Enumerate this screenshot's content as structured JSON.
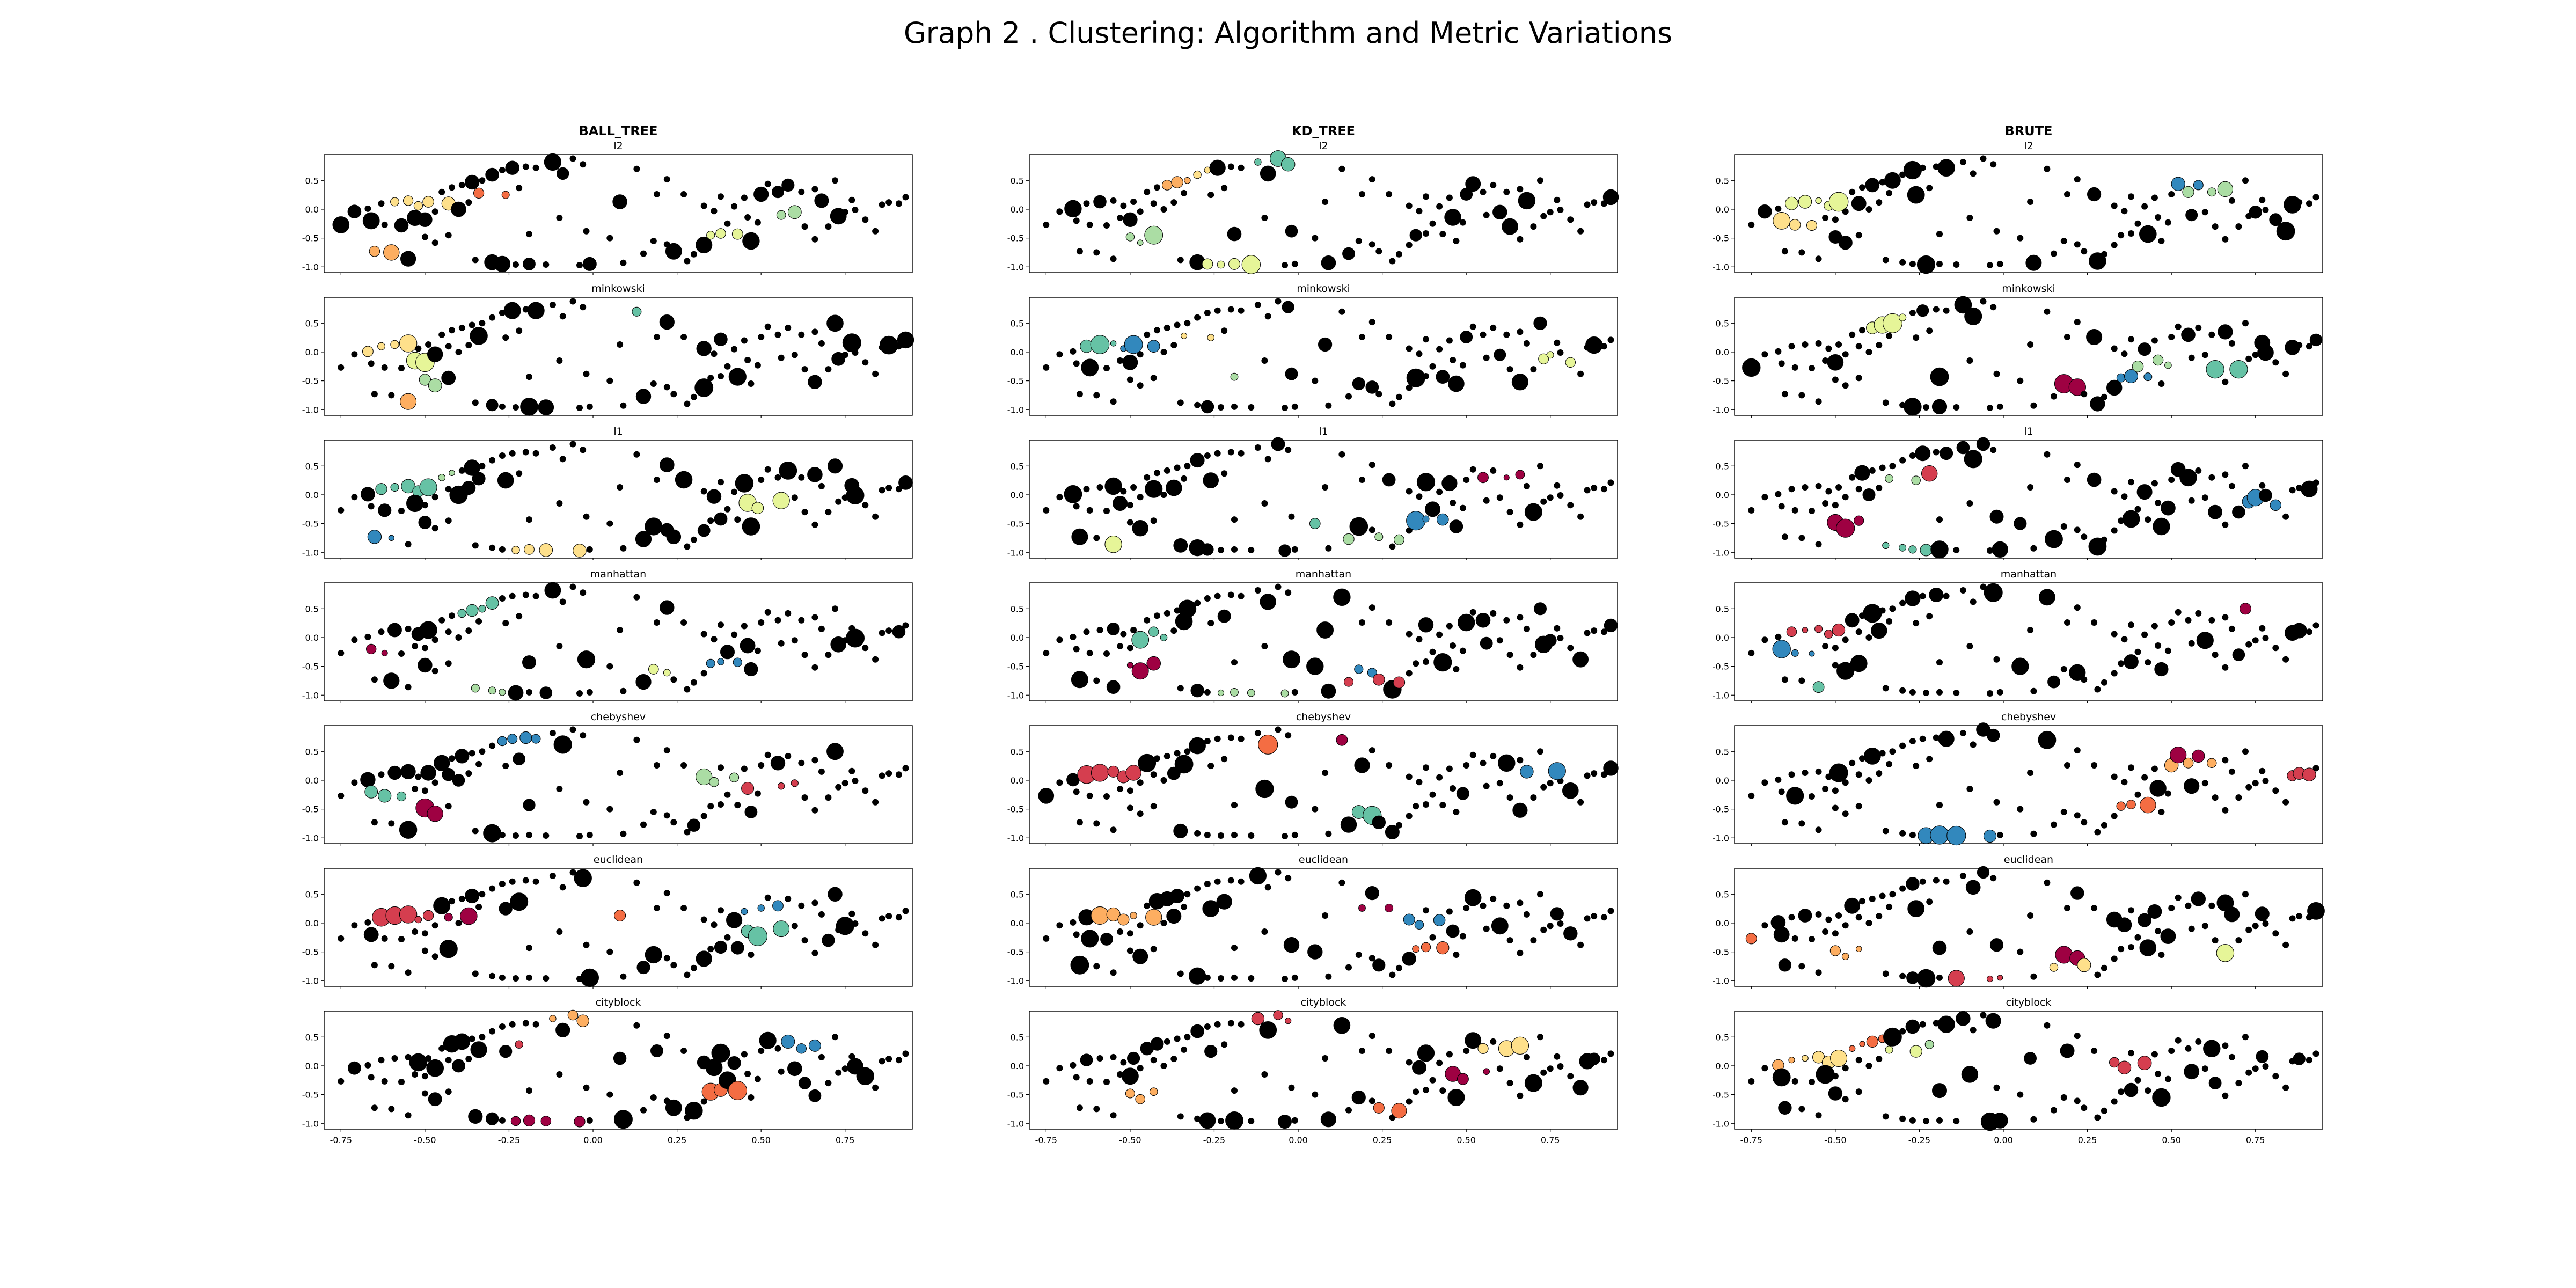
{
  "figure": {
    "title": "Graph 2 . Clustering: Algorithm and Metric Variations"
  },
  "chart_data": {
    "type": "scatter",
    "columns": [
      "BALL_TREE",
      "KD_TREE",
      "BRUTE"
    ],
    "rows": [
      "l2",
      "minkowski",
      "l1",
      "manhattan",
      "chebyshev",
      "euclidean",
      "cityblock"
    ],
    "xlim": [
      -0.8,
      0.95
    ],
    "ylim": [
      -1.1,
      0.95
    ],
    "x_ticks": [
      "-0.75",
      "-0.50",
      "-0.25",
      "0.00",
      "0.25",
      "0.50",
      "0.75"
    ],
    "y_ticks": [
      "0.5",
      "0.0",
      "-0.5",
      "-1.0"
    ],
    "grid": false,
    "legend": "none",
    "noise_color": "#000000",
    "cluster_colors": [
      "#9e0142",
      "#d53e4f",
      "#f46d43",
      "#fdae61",
      "#fee08b",
      "#e6f598",
      "#abdda4",
      "#66c2a5",
      "#3288bd"
    ],
    "points": [
      [
        -0.75,
        -0.27
      ],
      [
        -0.71,
        -0.04
      ],
      [
        -0.67,
        0.01
      ],
      [
        -0.63,
        0.1
      ],
      [
        -0.59,
        0.13
      ],
      [
        -0.55,
        0.15
      ],
      [
        -0.52,
        0.06
      ],
      [
        -0.49,
        0.13
      ],
      [
        -0.66,
        -0.2
      ],
      [
        -0.62,
        -0.27
      ],
      [
        -0.57,
        -0.28
      ],
      [
        -0.53,
        -0.15
      ],
      [
        -0.5,
        -0.18
      ],
      [
        -0.47,
        -0.04
      ],
      [
        -0.45,
        0.3
      ],
      [
        -0.42,
        0.38
      ],
      [
        -0.39,
        0.42
      ],
      [
        -0.36,
        0.47
      ],
      [
        -0.33,
        0.5
      ],
      [
        -0.3,
        0.6
      ],
      [
        -0.27,
        0.68
      ],
      [
        -0.24,
        0.72
      ],
      [
        -0.2,
        0.74
      ],
      [
        -0.17,
        0.72
      ],
      [
        -0.43,
        0.1
      ],
      [
        -0.4,
        0.0
      ],
      [
        -0.37,
        0.12
      ],
      [
        -0.34,
        0.28
      ],
      [
        -0.26,
        0.25
      ],
      [
        -0.22,
        0.37
      ],
      [
        -0.12,
        0.82
      ],
      [
        -0.09,
        0.62
      ],
      [
        -0.06,
        0.88
      ],
      [
        -0.03,
        0.78
      ],
      [
        -0.65,
        -0.73
      ],
      [
        -0.6,
        -0.75
      ],
      [
        -0.55,
        -0.86
      ],
      [
        -0.5,
        -0.48
      ],
      [
        -0.47,
        -0.58
      ],
      [
        -0.43,
        -0.45
      ],
      [
        -0.35,
        -0.88
      ],
      [
        -0.3,
        -0.92
      ],
      [
        -0.27,
        -0.95
      ],
      [
        -0.23,
        -0.96
      ],
      [
        -0.19,
        -0.95
      ],
      [
        -0.14,
        -0.96
      ],
      [
        -0.04,
        -0.97
      ],
      [
        -0.01,
        -0.95
      ],
      [
        -0.19,
        -0.43
      ],
      [
        -0.1,
        -0.15
      ],
      [
        -0.02,
        -0.38
      ],
      [
        0.05,
        -0.5
      ],
      [
        0.09,
        -0.93
      ],
      [
        0.15,
        -0.77
      ],
      [
        0.18,
        -0.55
      ],
      [
        0.22,
        -0.61
      ],
      [
        0.24,
        -0.73
      ],
      [
        0.28,
        -0.9
      ],
      [
        0.08,
        0.13
      ],
      [
        0.13,
        0.7
      ],
      [
        0.19,
        0.26
      ],
      [
        0.22,
        0.52
      ],
      [
        0.27,
        0.26
      ],
      [
        0.33,
        0.06
      ],
      [
        0.36,
        -0.03
      ],
      [
        0.38,
        0.22
      ],
      [
        0.3,
        -0.78
      ],
      [
        0.33,
        -0.62
      ],
      [
        0.35,
        -0.45
      ],
      [
        0.38,
        -0.42
      ],
      [
        0.4,
        -0.25
      ],
      [
        0.43,
        -0.43
      ],
      [
        0.46,
        -0.14
      ],
      [
        0.49,
        -0.23
      ],
      [
        0.47,
        -0.55
      ],
      [
        0.42,
        0.05
      ],
      [
        0.45,
        0.2
      ],
      [
        0.5,
        0.26
      ],
      [
        0.52,
        0.44
      ],
      [
        0.55,
        0.3
      ],
      [
        0.58,
        0.42
      ],
      [
        0.62,
        0.3
      ],
      [
        0.66,
        0.35
      ],
      [
        0.56,
        -0.1
      ],
      [
        0.6,
        -0.05
      ],
      [
        0.63,
        -0.3
      ],
      [
        0.66,
        -0.52
      ],
      [
        0.7,
        -0.3
      ],
      [
        0.73,
        -0.12
      ],
      [
        0.75,
        -0.05
      ],
      [
        0.78,
        -0.01
      ],
      [
        0.68,
        0.15
      ],
      [
        0.72,
        0.5
      ],
      [
        0.77,
        0.16
      ],
      [
        0.81,
        -0.18
      ],
      [
        0.84,
        -0.38
      ],
      [
        0.86,
        0.08
      ],
      [
        0.88,
        0.12
      ],
      [
        0.91,
        0.1
      ],
      [
        0.93,
        0.21
      ]
    ],
    "panels": [
      {
        "column": "BALL_TREE",
        "metric": "l2",
        "seed": 11
      },
      {
        "column": "BALL_TREE",
        "metric": "minkowski",
        "seed": 12
      },
      {
        "column": "BALL_TREE",
        "metric": "l1",
        "seed": 13
      },
      {
        "column": "BALL_TREE",
        "metric": "manhattan",
        "seed": 14
      },
      {
        "column": "BALL_TREE",
        "metric": "chebyshev",
        "seed": 15
      },
      {
        "column": "BALL_TREE",
        "metric": "euclidean",
        "seed": 16
      },
      {
        "column": "BALL_TREE",
        "metric": "cityblock",
        "seed": 17
      },
      {
        "column": "KD_TREE",
        "metric": "l2",
        "seed": 21
      },
      {
        "column": "KD_TREE",
        "metric": "minkowski",
        "seed": 22
      },
      {
        "column": "KD_TREE",
        "metric": "l1",
        "seed": 23
      },
      {
        "column": "KD_TREE",
        "metric": "manhattan",
        "seed": 24
      },
      {
        "column": "KD_TREE",
        "metric": "chebyshev",
        "seed": 25
      },
      {
        "column": "KD_TREE",
        "metric": "euclidean",
        "seed": 26
      },
      {
        "column": "KD_TREE",
        "metric": "cityblock",
        "seed": 27
      },
      {
        "column": "BRUTE",
        "metric": "l2",
        "seed": 31
      },
      {
        "column": "BRUTE",
        "metric": "minkowski",
        "seed": 32
      },
      {
        "column": "BRUTE",
        "metric": "l1",
        "seed": 33
      },
      {
        "column": "BRUTE",
        "metric": "manhattan",
        "seed": 34
      },
      {
        "column": "BRUTE",
        "metric": "chebyshev",
        "seed": 35
      },
      {
        "column": "BRUTE",
        "metric": "euclidean",
        "seed": 36
      },
      {
        "column": "BRUTE",
        "metric": "cityblock",
        "seed": 37
      }
    ]
  }
}
